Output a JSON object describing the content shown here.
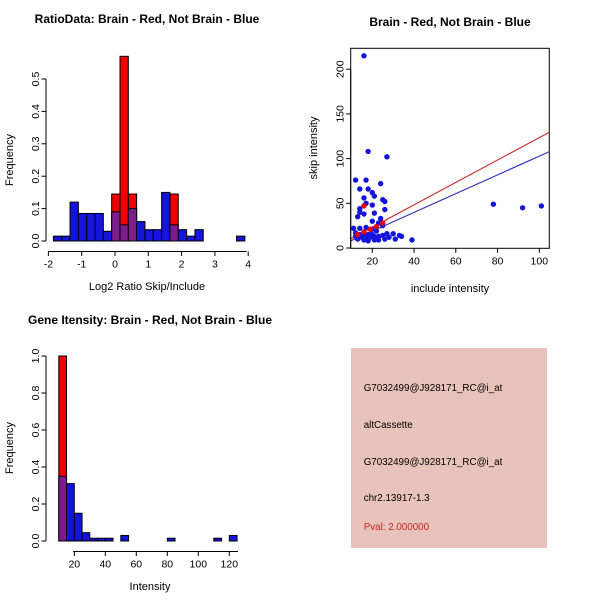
{
  "colors": {
    "red": "#ee0000",
    "blue": "#1414dc",
    "overlap": "#7d1c8c",
    "line_red": "#cc3333",
    "line_blue": "#3333bb",
    "info_bg": "#e8c3bb",
    "pval_red": "#c22a22",
    "axis": "#000000",
    "background": "#ffffff"
  },
  "chart_data": [
    {
      "id": "ratio_histogram",
      "type": "bar",
      "title": "RatioData: Brain - Red, Not Brain - Blue",
      "xlabel": "Log2 Ratio Skip/Include",
      "ylabel": "Frequency",
      "xlim": [
        -2.1,
        4.1
      ],
      "ylim": [
        0,
        0.57
      ],
      "grid": false,
      "legend": "none (colors encode groups: Brain=red, Not Brain=blue, overlap=purple)",
      "xtick_vals": [
        -2,
        -1,
        0,
        1,
        2,
        3,
        4
      ],
      "xtick_labels": [
        "-2",
        "-1",
        "0",
        "1",
        "2",
        "3",
        "4"
      ],
      "ytick_vals": [
        0.0,
        0.1,
        0.2,
        0.3,
        0.4,
        0.5
      ],
      "ytick_labels": [
        "0.0",
        "0.1",
        "0.2",
        "0.3",
        "0.4",
        "0.5"
      ],
      "bin_width": 0.25,
      "blue_bars": [
        [
          -1.85,
          0.015
        ],
        [
          -1.6,
          0.015
        ],
        [
          -1.35,
          0.12
        ],
        [
          -1.1,
          0.085
        ],
        [
          -0.85,
          0.085
        ],
        [
          -0.6,
          0.085
        ],
        [
          -0.35,
          0.03
        ],
        [
          -0.1,
          0.09
        ],
        [
          0.15,
          0.05
        ],
        [
          0.4,
          0.1
        ],
        [
          0.65,
          0.06
        ],
        [
          0.9,
          0.035
        ],
        [
          1.15,
          0.035
        ],
        [
          1.4,
          0.15
        ],
        [
          1.65,
          0.05
        ],
        [
          1.9,
          0.035
        ],
        [
          2.15,
          0.015
        ],
        [
          2.4,
          0.035
        ],
        [
          3.65,
          0.015
        ]
      ],
      "red_bars": [
        [
          -0.1,
          0.145
        ],
        [
          0.15,
          0.57
        ],
        [
          0.4,
          0.145
        ],
        [
          1.65,
          0.145
        ]
      ]
    },
    {
      "id": "intensity_scatter",
      "type": "scatter",
      "title": "Brain - Red, Not Brain - Blue",
      "xlabel": "include intensity",
      "ylabel": "skip intensity",
      "xlim": [
        8.7,
        104.8
      ],
      "ylim": [
        0,
        223
      ],
      "grid": false,
      "xtick_vals": [
        20,
        40,
        60,
        80,
        100
      ],
      "xtick_labels": [
        "20",
        "40",
        "60",
        "80",
        "100"
      ],
      "ytick_vals": [
        0,
        50,
        100,
        150,
        200
      ],
      "ytick_labels": [
        "0",
        "50",
        "100",
        "150",
        "200"
      ],
      "blue_points": [
        [
          16,
          215
        ],
        [
          18,
          108
        ],
        [
          27,
          102
        ],
        [
          12,
          76
        ],
        [
          17,
          76
        ],
        [
          24,
          72
        ],
        [
          14,
          66
        ],
        [
          18,
          66
        ],
        [
          20,
          62
        ],
        [
          21,
          58
        ],
        [
          16,
          56
        ],
        [
          25,
          54
        ],
        [
          26,
          52
        ],
        [
          17,
          50
        ],
        [
          20,
          48
        ],
        [
          78,
          49
        ],
        [
          92,
          45
        ],
        [
          101,
          47
        ],
        [
          14,
          44
        ],
        [
          26,
          43
        ],
        [
          14,
          40
        ],
        [
          16,
          38
        ],
        [
          21,
          39
        ],
        [
          24,
          33
        ],
        [
          13,
          35
        ],
        [
          20,
          30
        ],
        [
          23,
          28
        ],
        [
          25,
          25
        ],
        [
          11,
          22
        ],
        [
          14,
          22
        ],
        [
          17,
          23
        ],
        [
          20,
          21
        ],
        [
          22,
          19
        ],
        [
          12,
          17
        ],
        [
          14,
          15
        ],
        [
          16,
          16
        ],
        [
          18,
          15
        ],
        [
          20,
          15
        ],
        [
          15,
          12
        ],
        [
          17,
          11
        ],
        [
          19,
          12
        ],
        [
          21,
          13
        ],
        [
          23,
          13
        ],
        [
          25,
          14
        ],
        [
          27,
          16
        ],
        [
          30,
          16
        ],
        [
          33,
          14
        ],
        [
          28,
          12
        ],
        [
          16,
          9
        ],
        [
          18,
          8
        ],
        [
          21,
          9
        ],
        [
          39,
          9
        ],
        [
          13,
          10
        ],
        [
          12,
          13
        ],
        [
          31,
          10
        ],
        [
          34,
          13
        ],
        [
          26,
          10
        ],
        [
          23,
          9
        ]
      ],
      "red_points": [
        [
          16,
          47
        ],
        [
          13,
          15
        ],
        [
          16,
          18
        ],
        [
          19,
          21
        ],
        [
          22,
          24
        ],
        [
          25,
          28
        ]
      ],
      "red_line": {
        "x1": 9.7,
        "y1": 10.3,
        "x2": 104.8,
        "y2": 129.5
      },
      "blue_line": {
        "x1": 9.7,
        "y1": 8.0,
        "x2": 104.8,
        "y2": 107.8
      }
    },
    {
      "id": "gene_intensity_histogram",
      "type": "bar",
      "title": "Gene Itensity: Brain - Red, Not Brain - Blue",
      "xlabel": "Intensity",
      "ylabel": "Frequency",
      "xlim": [
        8,
        130
      ],
      "ylim": [
        0,
        1.0
      ],
      "grid": false,
      "xtick_vals": [
        20,
        40,
        60,
        80,
        100,
        120
      ],
      "xtick_labels": [
        "20",
        "40",
        "60",
        "80",
        "100",
        "120"
      ],
      "ytick_vals": [
        0.0,
        0.2,
        0.4,
        0.6,
        0.8,
        1.0
      ],
      "ytick_labels": [
        "0.0",
        "0.2",
        "0.4",
        "0.6",
        "0.8",
        "1.0"
      ],
      "bin_width": 5,
      "blue_bars": [
        [
          10,
          0.35
        ],
        [
          15,
          0.31
        ],
        [
          20,
          0.15
        ],
        [
          25,
          0.045
        ],
        [
          30,
          0.015
        ],
        [
          35,
          0.015
        ],
        [
          40,
          0.015
        ],
        [
          50,
          0.03
        ],
        [
          80,
          0.015
        ],
        [
          110,
          0.015
        ],
        [
          120,
          0.03
        ]
      ],
      "red_bars": [
        [
          10,
          1.0
        ]
      ]
    },
    {
      "id": "probe_info",
      "type": "table",
      "lines": [
        "G7032499@J928171_RC@i_at",
        "altCassette",
        "G7032499@J928171_RC@i_at",
        "chr2.13917-1.3",
        "Pval: 2.000000"
      ]
    }
  ]
}
